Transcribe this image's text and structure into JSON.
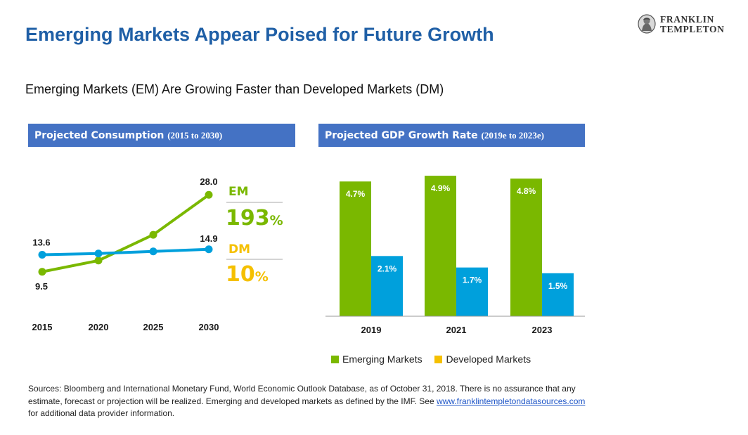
{
  "page": {
    "title": "Emerging Markets Appear Poised for Future Growth",
    "subtitle": "Emerging Markets (EM) Are Growing Faster than Developed Markets (DM)",
    "logo": {
      "line1": "FRANKLIN",
      "line2": "TEMPLETON",
      "icon": "franklin-portrait-coin-icon"
    }
  },
  "colors": {
    "em": "#7ab800",
    "dm_line": "#00a0dc",
    "dm_bar": "#00a0dc",
    "dm_legend": "#f5c000",
    "header": "#4472c4",
    "title": "#1f5fa6"
  },
  "left_panel": {
    "header": "Projected Consumption",
    "header_range": "(2015 to 2030)",
    "em_label": "EM",
    "em_growth_number": "193",
    "em_growth_unit": "%",
    "dm_label": "DM",
    "dm_growth_number": "10",
    "dm_growth_unit": "%"
  },
  "right_panel": {
    "header": "Projected GDP Growth Rate",
    "header_range": "(2019e to 2023e)"
  },
  "legend": [
    {
      "name": "Emerging Markets",
      "color": "#7ab800"
    },
    {
      "name": "Developed Markets",
      "color": "#f5c000"
    }
  ],
  "sources": {
    "text_before": "Sources: Bloomberg and International Monetary Fund, World Economic Outlook Database, as of October 31, 2018.  There is no assurance that any estimate, forecast or projection will be realized. Emerging and developed markets as defined by the IMF. See ",
    "link": "www.franklintempletondatasources.com",
    "text_after": " for additional data provider information."
  },
  "chart_data": [
    {
      "type": "line",
      "title": "Projected Consumption (2015 to 2030)",
      "x": [
        "2015",
        "2020",
        "2025",
        "2030"
      ],
      "series": [
        {
          "name": "EM",
          "values": [
            9.5,
            12.2,
            18.4,
            28.0
          ],
          "labeled": [
            "9.5",
            null,
            null,
            "28.0"
          ]
        },
        {
          "name": "DM",
          "values": [
            13.6,
            13.9,
            14.4,
            14.9
          ],
          "labeled": [
            "13.6",
            null,
            null,
            "14.9"
          ]
        }
      ],
      "ylim": [
        0,
        30
      ],
      "grid": false
    },
    {
      "type": "bar",
      "title": "Projected GDP Growth Rate (2019e to 2023e)",
      "categories": [
        "2019",
        "2021",
        "2023"
      ],
      "series": [
        {
          "name": "Emerging Markets",
          "values": [
            4.7,
            4.9,
            4.8
          ],
          "labels": [
            "4.7%",
            "4.9%",
            "4.8%"
          ]
        },
        {
          "name": "Developed Markets",
          "values": [
            2.1,
            1.7,
            1.5
          ],
          "labels": [
            "2.1%",
            "1.7%",
            "1.5%"
          ]
        }
      ],
      "ylim": [
        0,
        5
      ],
      "legend": "bottom",
      "grid": false
    }
  ]
}
